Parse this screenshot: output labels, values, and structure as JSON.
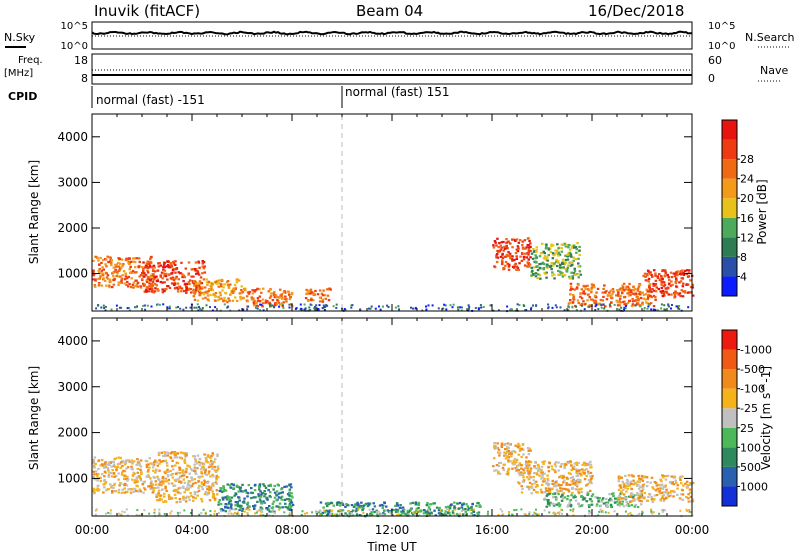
{
  "header": {
    "station": "Inuvik (fitACF)",
    "beam": "Beam 04",
    "date": "16/Dec/2018"
  },
  "noise_panel": {
    "left_label": "N.Sky",
    "right_label": "N.Search",
    "left_ticks": [
      "10^5",
      "10^0"
    ],
    "right_ticks": [
      "10^5",
      "10^0"
    ]
  },
  "freq_panel": {
    "left_label_1": "Freq.",
    "left_label_2": "[MHz]",
    "right_label": "Nave",
    "left_ticks": [
      "18",
      "8"
    ],
    "right_ticks": [
      "60",
      "0"
    ]
  },
  "cpid": {
    "label": "CPID",
    "segments": [
      {
        "start_hour": 0,
        "name": "normal (fast) -151"
      },
      {
        "start_hour": 10,
        "name": "normal (fast) 151"
      }
    ]
  },
  "power_colorbar": {
    "label": "Power [dB]",
    "ticks": [
      "4",
      "8",
      "12",
      "16",
      "20",
      "24",
      "28"
    ],
    "colors": [
      "#0b1cff",
      "#2a4fa8",
      "#2e7d52",
      "#4caa5a",
      "#e8c21a",
      "#f39a1b",
      "#f06a14",
      "#ef3a12",
      "#e8130f"
    ]
  },
  "velocity_colorbar": {
    "label": "Velocity [m s^-1]",
    "ticks": [
      "1000",
      "500",
      "100",
      "25",
      "-25",
      "-100",
      "-500",
      "-1000"
    ],
    "colors": [
      "#1330d8",
      "#2a60b0",
      "#2e8a5e",
      "#4cb85a",
      "#c0c0c0",
      "#f5b21a",
      "#f08a1a",
      "#f05a14",
      "#ee1a10"
    ]
  },
  "chart_data": {
    "type": "heatmap",
    "xlabel": "Time UT",
    "ylabel": "Slant Range [km]",
    "x_ticks": [
      "00:00",
      "04:00",
      "08:00",
      "12:00",
      "16:00",
      "20:00",
      "00:00"
    ],
    "y_ticks": [
      1000,
      2000,
      3000,
      4000
    ],
    "xlim_hours": [
      0,
      24
    ],
    "ylim_km": [
      180,
      4500
    ],
    "panels": [
      {
        "quantity": "Power [dB]",
        "regions": [
          {
            "t": [
              0.0,
              2.5
            ],
            "r": [
              700,
              1400
            ],
            "value": 22
          },
          {
            "t": [
              2.0,
              4.5
            ],
            "r": [
              600,
              1300
            ],
            "value": 27
          },
          {
            "t": [
              4.0,
              6.0
            ],
            "r": [
              400,
              900
            ],
            "value": 20
          },
          {
            "t": [
              6.0,
              8.0
            ],
            "r": [
              300,
              700
            ],
            "value": 24
          },
          {
            "t": [
              8.5,
              9.5
            ],
            "r": [
              400,
              700
            ],
            "value": 22
          },
          {
            "t": [
              16.0,
              17.5
            ],
            "r": [
              1100,
              1800
            ],
            "value": 25
          },
          {
            "t": [
              17.5,
              19.5
            ],
            "r": [
              900,
              1700
            ],
            "value": 14
          },
          {
            "t": [
              19.0,
              22.5
            ],
            "r": [
              300,
              800
            ],
            "value": 22
          },
          {
            "t": [
              22.0,
              24.0
            ],
            "r": [
              500,
              1100
            ],
            "value": 28
          }
        ]
      },
      {
        "quantity": "Velocity [m s^-1]",
        "regions": [
          {
            "t": [
              0.0,
              2.5
            ],
            "r": [
              700,
              1500
            ],
            "value": -100
          },
          {
            "t": [
              2.5,
              5.0
            ],
            "r": [
              500,
              1600
            ],
            "value": -100
          },
          {
            "t": [
              5.0,
              8.0
            ],
            "r": [
              300,
              900
            ],
            "value": 100
          },
          {
            "t": [
              9.0,
              15.5
            ],
            "r": [
              200,
              500
            ],
            "value": 100
          },
          {
            "t": [
              16.0,
              17.5
            ],
            "r": [
              1100,
              1800
            ],
            "value": -100
          },
          {
            "t": [
              17.0,
              20.0
            ],
            "r": [
              700,
              1400
            ],
            "value": -100
          },
          {
            "t": [
              18.0,
              22.0
            ],
            "r": [
              400,
              700
            ],
            "value": 25
          },
          {
            "t": [
              21.0,
              24.0
            ],
            "r": [
              500,
              1100
            ],
            "value": -100
          }
        ]
      }
    ]
  }
}
